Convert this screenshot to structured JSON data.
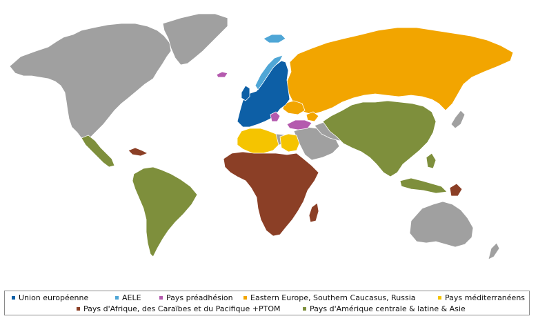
{
  "colors": {
    "ocean": "#ffffff",
    "other": "#a0a0a0",
    "eu": "#0d5fa6",
    "efta": "#4fa6d6",
    "preaccession": "#b45aae",
    "eastern": "#f2a500",
    "mediterranean": "#f5c400",
    "acp": "#8b3f26",
    "ala": "#7e8f3c",
    "border": "#ffffff"
  },
  "legend": {
    "items": [
      {
        "key": "eu",
        "label": "Union européenne"
      },
      {
        "key": "efta",
        "label": "AELE"
      },
      {
        "key": "preaccession",
        "label": "Pays préadhésion"
      },
      {
        "key": "eastern",
        "label": "Eastern Europe, Southern Caucasus, Russia"
      },
      {
        "key": "mediterranean",
        "label": "Pays méditerranéens"
      },
      {
        "key": "acp",
        "label": "Pays d'Afrique, des Caraïbes et du Pacifique +PTOM"
      },
      {
        "key": "ala",
        "label": "Pays d'Amérique centrale & latine & Asie"
      }
    ]
  }
}
